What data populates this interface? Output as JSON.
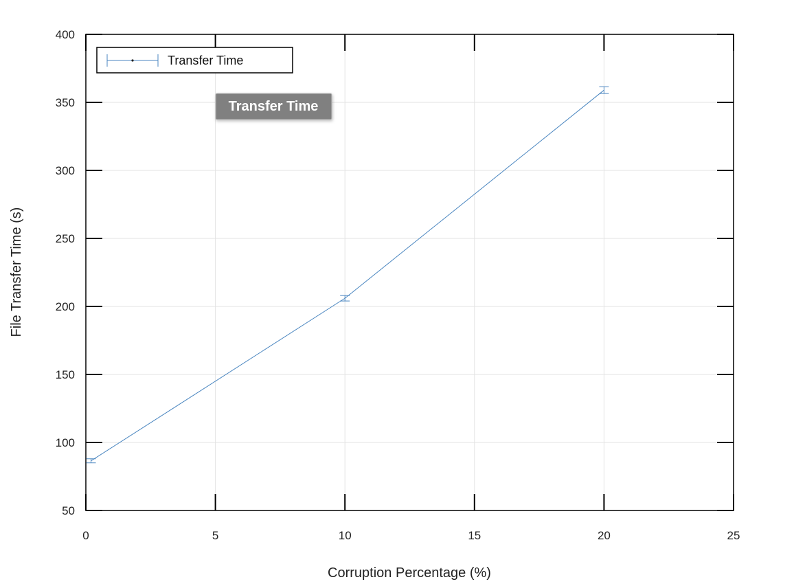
{
  "chart_data": {
    "type": "line",
    "title": "",
    "xlabel": "Corruption Percentage (%)",
    "ylabel": "File Transfer Time (s)",
    "xlim": [
      0,
      25
    ],
    "ylim": [
      50,
      400
    ],
    "xticks": [
      "0",
      "5",
      "10",
      "15",
      "20",
      "25"
    ],
    "yticks": [
      "50",
      "100",
      "150",
      "200",
      "250",
      "300",
      "350",
      "400"
    ],
    "grid": true,
    "legend_position": "top-left",
    "series": [
      {
        "name": "Transfer Time",
        "color": "#4a86c0",
        "x": [
          0.2,
          10,
          20
        ],
        "y": [
          86.5,
          206,
          359
        ],
        "err": [
          1.5,
          2,
          2.5
        ]
      }
    ]
  },
  "tooltip": {
    "label": "Transfer Time"
  }
}
